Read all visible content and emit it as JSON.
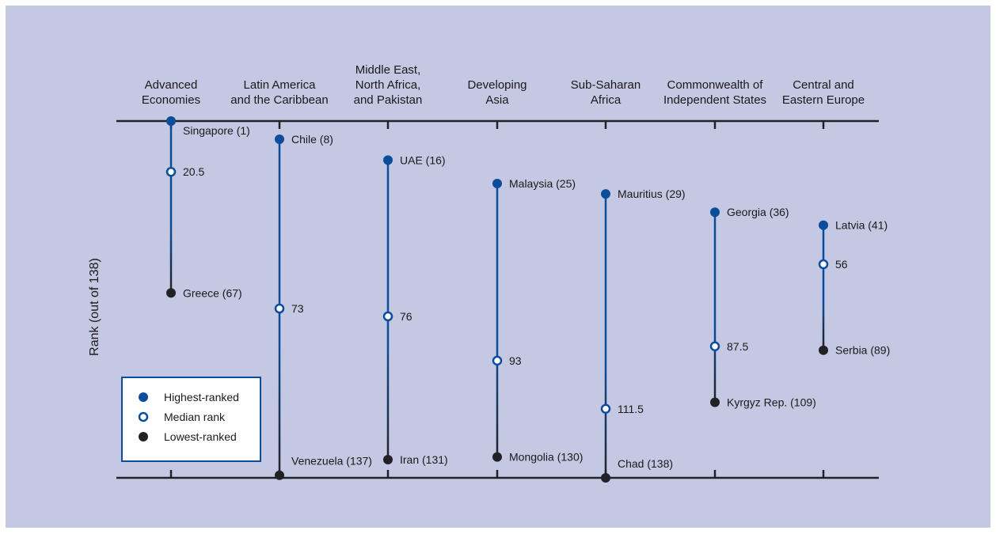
{
  "chart_data": {
    "type": "range-dot",
    "ylabel": "Rank (out of 138)",
    "ylim": [
      1,
      138
    ],
    "y_inverted": true,
    "grid": false,
    "legend_placement": "bottom-left",
    "legend": [
      {
        "key": "high",
        "label": "Highest-ranked"
      },
      {
        "key": "median",
        "label": "Median rank"
      },
      {
        "key": "low",
        "label": "Lowest-ranked"
      }
    ],
    "colors": {
      "high": "#0b4d9b",
      "median": "#ffffff",
      "median_stroke": "#0b4d9b",
      "low": "#222226",
      "axis": "#222226",
      "background": "#c5c8e3"
    },
    "groups": [
      {
        "category": [
          "Advanced",
          "Economies"
        ],
        "high": {
          "rank": 1,
          "label": "Singapore (1)"
        },
        "median": {
          "rank": 20.5,
          "label": "20.5"
        },
        "low": {
          "rank": 67,
          "label": "Greece (67)"
        }
      },
      {
        "category": [
          "Latin America",
          "and the Caribbean"
        ],
        "high": {
          "rank": 8,
          "label": "Chile (8)"
        },
        "median": {
          "rank": 73,
          "label": "73"
        },
        "low": {
          "rank": 137,
          "label": "Venezuela (137)"
        }
      },
      {
        "category": [
          "Middle East,",
          "North Africa,",
          "and Pakistan"
        ],
        "high": {
          "rank": 16,
          "label": "UAE (16)"
        },
        "median": {
          "rank": 76,
          "label": "76"
        },
        "low": {
          "rank": 131,
          "label": "Iran (131)"
        }
      },
      {
        "category": [
          "Developing",
          "Asia"
        ],
        "high": {
          "rank": 25,
          "label": "Malaysia (25)"
        },
        "median": {
          "rank": 93,
          "label": "93"
        },
        "low": {
          "rank": 130,
          "label": "Mongolia (130)"
        }
      },
      {
        "category": [
          "Sub-Saharan",
          "Africa"
        ],
        "high": {
          "rank": 29,
          "label": "Mauritius (29)"
        },
        "median": {
          "rank": 111.5,
          "label": "111.5"
        },
        "low": {
          "rank": 138,
          "label": "Chad (138)"
        }
      },
      {
        "category": [
          "Commonwealth of",
          "Independent States"
        ],
        "high": {
          "rank": 36,
          "label": "Georgia (36)"
        },
        "median": {
          "rank": 87.5,
          "label": "87.5"
        },
        "low": {
          "rank": 109,
          "label": "Kyrgyz Rep. (109)"
        }
      },
      {
        "category": [
          "Central and",
          "Eastern Europe"
        ],
        "high": {
          "rank": 41,
          "label": "Latvia (41)"
        },
        "median": {
          "rank": 56,
          "label": "56"
        },
        "low": {
          "rank": 89,
          "label": "Serbia (89)"
        }
      }
    ]
  }
}
